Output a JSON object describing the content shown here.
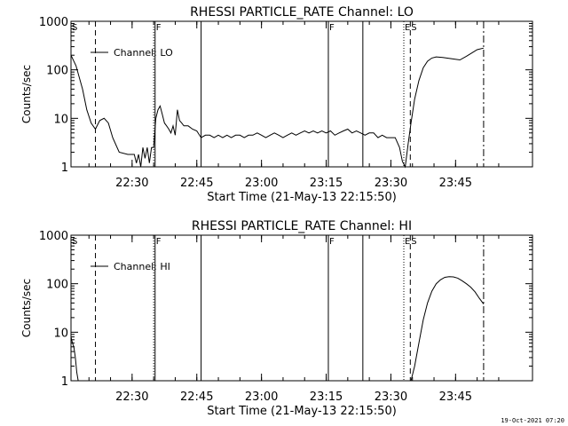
{
  "footer_stamp": "19-Oct-2021 07:20",
  "chart_data": [
    {
      "type": "line",
      "title": "RHESSI PARTICLE_RATE Channel: LO",
      "xlabel": "Start Time (21-May-13 22:15:50)",
      "ylabel": "Counts/sec",
      "yscale": "log",
      "ylim": [
        1,
        1000
      ],
      "xlim_minutes_after_start": [
        0,
        107
      ],
      "x_ticks": [
        "22:30",
        "22:45",
        "23:00",
        "23:15",
        "23:30",
        "23:45"
      ],
      "y_ticks": [
        "1",
        "10",
        "100",
        "1000"
      ],
      "legend": [
        "Channel: LO"
      ],
      "legend_position": "top-left",
      "markers": [
        {
          "time": "22:15:50",
          "style": "solid",
          "label": "S"
        },
        {
          "time": "22:21:30",
          "style": "dashed",
          "label": ""
        },
        {
          "time": "22:35:00",
          "style": "dotted",
          "label": ""
        },
        {
          "time": "22:35:20",
          "style": "solid",
          "label": "F"
        },
        {
          "time": "22:46:00",
          "style": "solid",
          "label": ""
        },
        {
          "time": "23:15:30",
          "style": "solid",
          "label": "F"
        },
        {
          "time": "23:23:30",
          "style": "solid",
          "label": ""
        },
        {
          "time": "23:33:00",
          "style": "dotted",
          "label": "E"
        },
        {
          "time": "23:34:30",
          "style": "dashed",
          "label": "S"
        },
        {
          "time": "23:51:30",
          "style": "dashdot",
          "label": ""
        }
      ],
      "series": [
        {
          "name": "Channel: LO",
          "x": [
            "22:15:50",
            "22:17:00",
            "22:18:30",
            "22:19:30",
            "22:20:30",
            "22:21:30",
            "22:22:30",
            "22:23:30",
            "22:24:30",
            "22:25:30",
            "22:27:00",
            "22:29:00",
            "22:30:00",
            "22:30:30",
            "22:31:00",
            "22:31:30",
            "22:32:00",
            "22:32:30",
            "22:33:00",
            "22:33:30",
            "22:34:00",
            "22:34:30",
            "22:35:00",
            "22:35:30",
            "22:36:00",
            "22:36:30",
            "22:37:00",
            "22:37:30",
            "22:38:00",
            "22:38:30",
            "22:39:00",
            "22:39:30",
            "22:40:00",
            "22:40:30",
            "22:41:00",
            "22:41:30",
            "22:42:00",
            "22:43:00",
            "22:44:00",
            "22:45:00",
            "22:46:00",
            "22:47:00",
            "22:48:00",
            "22:49:00",
            "22:50:00",
            "22:51:00",
            "22:52:00",
            "22:53:00",
            "22:54:00",
            "22:55:00",
            "22:56:00",
            "22:57:00",
            "22:58:00",
            "22:59:00",
            "23:00:00",
            "23:01:00",
            "23:02:00",
            "23:03:00",
            "23:04:00",
            "23:05:00",
            "23:06:00",
            "23:07:00",
            "23:08:00",
            "23:09:00",
            "23:10:00",
            "23:11:00",
            "23:12:00",
            "23:13:00",
            "23:14:00",
            "23:15:00",
            "23:16:00",
            "23:17:00",
            "23:18:00",
            "23:19:00",
            "23:20:00",
            "23:21:00",
            "23:22:00",
            "23:23:00",
            "23:24:00",
            "23:25:00",
            "23:26:00",
            "23:27:00",
            "23:28:00",
            "23:29:00",
            "23:30:00",
            "23:31:00",
            "23:32:00",
            "23:32:40",
            "23:33:20",
            "23:34:00",
            "23:34:40",
            "23:35:30",
            "23:36:30",
            "23:37:30",
            "23:38:30",
            "23:39:30",
            "23:40:30",
            "23:42:00",
            "23:44:00",
            "23:46:00",
            "23:47:30",
            "23:49:00",
            "23:50:00",
            "23:51:30"
          ],
          "y": [
            200,
            120,
            40,
            15,
            8,
            6,
            9,
            10,
            8,
            4,
            2,
            1.8,
            1.8,
            1.8,
            1.2,
            1.8,
            1,
            2.5,
            1.5,
            2.5,
            1.2,
            2.5,
            2.5,
            10,
            15,
            18,
            12,
            8,
            7,
            6,
            5,
            7,
            4.5,
            15,
            9,
            8,
            7,
            7,
            6,
            5.5,
            4,
            4.5,
            4.5,
            4,
            4.5,
            4,
            4.5,
            4,
            4.5,
            4.5,
            4,
            4.5,
            4.5,
            5,
            4.5,
            4,
            4.5,
            5,
            4.5,
            4,
            4.5,
            5,
            4.5,
            5,
            5.5,
            5,
            5.5,
            5,
            5.5,
            5,
            5.5,
            4.5,
            5,
            5.5,
            6,
            5,
            5.5,
            5,
            4.5,
            5,
            5,
            4,
            4.5,
            4,
            4,
            4,
            2.5,
            1.3,
            1,
            3,
            8,
            25,
            60,
            110,
            150,
            175,
            185,
            180,
            170,
            160,
            190,
            230,
            260,
            280
          ]
        }
      ]
    },
    {
      "type": "line",
      "title": "RHESSI PARTICLE_RATE Channel: HI",
      "xlabel": "Start Time (21-May-13 22:15:50)",
      "ylabel": "Counts/sec",
      "yscale": "log",
      "ylim": [
        1,
        1000
      ],
      "xlim_minutes_after_start": [
        0,
        107
      ],
      "x_ticks": [
        "22:30",
        "22:45",
        "23:00",
        "23:15",
        "23:30",
        "23:45"
      ],
      "y_ticks": [
        "1",
        "10",
        "100",
        "1000"
      ],
      "legend": [
        "Channel: HI"
      ],
      "legend_position": "top-left",
      "markers": [
        {
          "time": "22:15:50",
          "style": "solid",
          "label": "S"
        },
        {
          "time": "22:21:30",
          "style": "dashed",
          "label": ""
        },
        {
          "time": "22:35:00",
          "style": "dotted",
          "label": ""
        },
        {
          "time": "22:35:20",
          "style": "solid",
          "label": "F"
        },
        {
          "time": "22:46:00",
          "style": "solid",
          "label": ""
        },
        {
          "time": "23:15:30",
          "style": "solid",
          "label": "F"
        },
        {
          "time": "23:23:30",
          "style": "solid",
          "label": ""
        },
        {
          "time": "23:33:00",
          "style": "dotted",
          "label": "E"
        },
        {
          "time": "23:34:30",
          "style": "dashed",
          "label": "S"
        },
        {
          "time": "23:51:30",
          "style": "dashdot",
          "label": ""
        }
      ],
      "series": [
        {
          "name": "Channel: HI",
          "x": [
            "22:15:50",
            "22:16:10",
            "22:16:30",
            "22:16:50",
            "22:17:10",
            "22:17:30",
            "23:34:40",
            "23:35:30",
            "23:36:30",
            "23:37:30",
            "23:38:30",
            "23:39:30",
            "23:40:30",
            "23:41:30",
            "23:42:30",
            "23:43:30",
            "23:44:30",
            "23:45:30",
            "23:46:30",
            "23:47:30",
            "23:48:30",
            "23:49:30",
            "23:50:30",
            "23:51:30"
          ],
          "y": [
            8,
            6,
            5,
            3,
            1.5,
            1,
            1,
            2,
            6,
            18,
            40,
            70,
            100,
            120,
            135,
            140,
            138,
            130,
            115,
            100,
            85,
            68,
            50,
            38
          ]
        }
      ]
    }
  ]
}
